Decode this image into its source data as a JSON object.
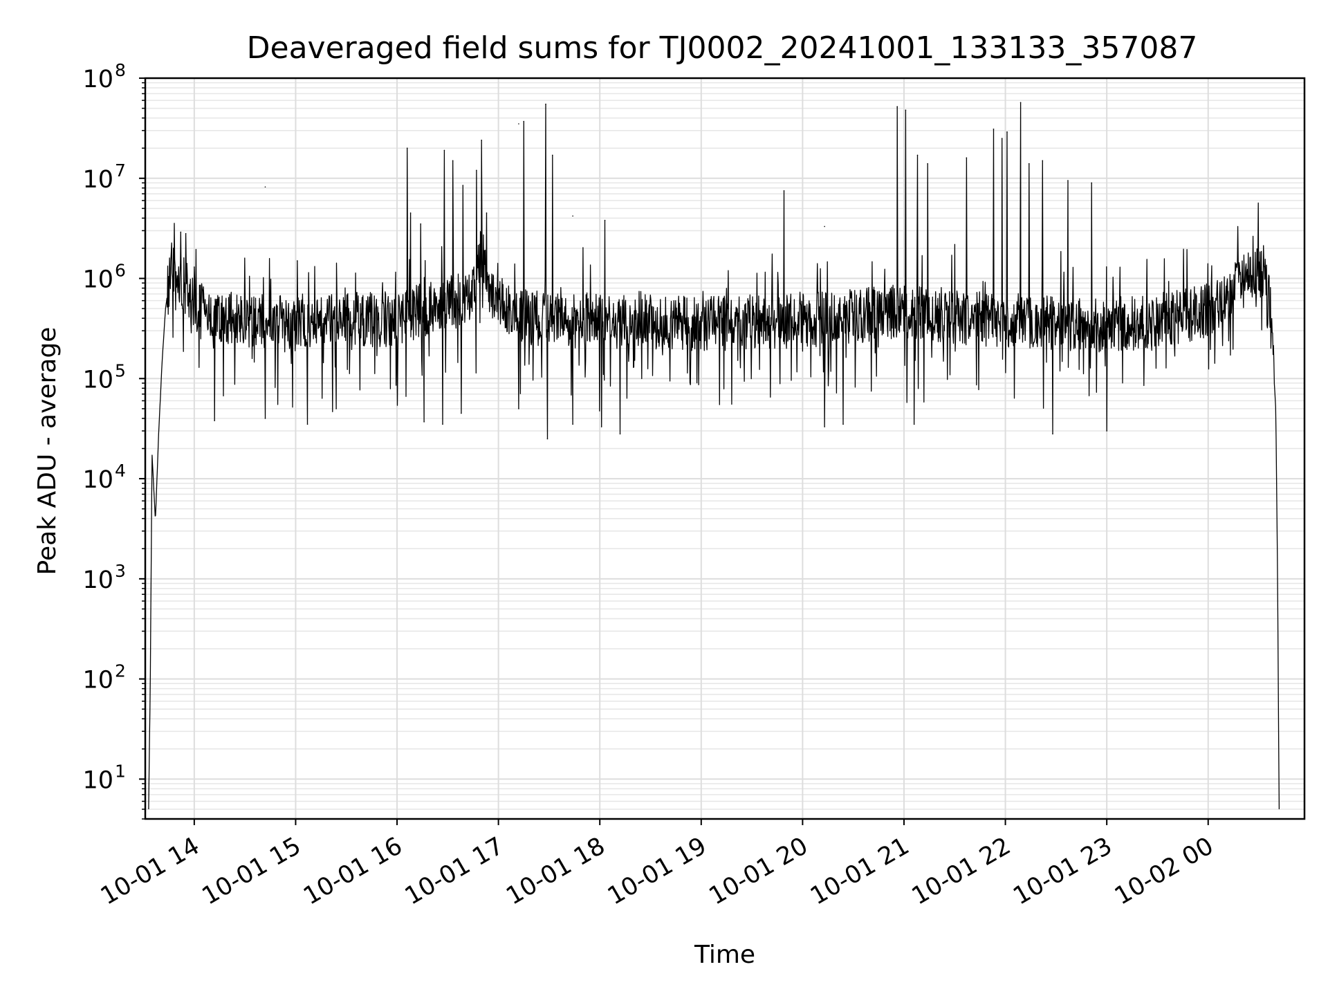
{
  "chart_data": {
    "type": "line",
    "title": "Deaveraged field sums for TJ0002_20241001_133133_357087",
    "xlabel": "Time",
    "ylabel": "Peak ADU - average",
    "x_scale": "time",
    "y_scale": "log",
    "xlim": [
      "2024-10-01 13:31",
      "2024-10-02 00:57"
    ],
    "ylim": [
      4,
      100000000
    ],
    "grid": true,
    "x_ticks": [
      "10-01 14",
      "10-01 15",
      "10-01 16",
      "10-01 17",
      "10-01 18",
      "10-01 19",
      "10-01 20",
      "10-01 21",
      "10-01 22",
      "10-01 23",
      "10-02 00"
    ],
    "y_ticks": [
      {
        "value": 10,
        "base": "10",
        "exp": "1"
      },
      {
        "value": 100,
        "base": "10",
        "exp": "2"
      },
      {
        "value": 1000,
        "base": "10",
        "exp": "3"
      },
      {
        "value": 10000,
        "base": "10",
        "exp": "4"
      },
      {
        "value": 100000,
        "base": "10",
        "exp": "5"
      },
      {
        "value": 1000000,
        "base": "10",
        "exp": "6"
      },
      {
        "value": 10000000,
        "base": "10",
        "exp": "7"
      },
      {
        "value": 100000000,
        "base": "10",
        "exp": "8"
      }
    ],
    "series": [
      {
        "color": "#000000",
        "baseline": {
          "x": [
            "2024-10-01 13:33",
            "2024-10-01 13:34",
            "2024-10-01 13:35",
            "2024-10-01 13:37",
            "2024-10-01 13:39",
            "2024-10-01 13:41",
            "2024-10-01 13:43",
            "2024-10-01 13:45",
            "2024-10-01 13:47",
            "2024-10-01 13:50",
            "2024-10-01 13:55",
            "2024-10-01 14:00",
            "2024-10-01 14:10",
            "2024-10-01 14:30",
            "2024-10-01 15:00",
            "2024-10-01 15:30",
            "2024-10-01 15:50",
            "2024-10-01 16:10",
            "2024-10-01 16:30",
            "2024-10-01 16:45",
            "2024-10-01 16:50",
            "2024-10-01 16:55",
            "2024-10-01 17:00",
            "2024-10-01 17:20",
            "2024-10-01 18:00",
            "2024-10-01 19:00",
            "2024-10-01 20:00",
            "2024-10-01 20:30",
            "2024-10-01 21:00",
            "2024-10-01 21:30",
            "2024-10-01 22:00",
            "2024-10-01 22:30",
            "2024-10-01 23:00",
            "2024-10-01 23:30",
            "2024-10-01 23:45",
            "2024-10-02 00:00",
            "2024-10-02 00:10",
            "2024-10-02 00:15",
            "2024-10-02 00:20",
            "2024-10-02 00:25",
            "2024-10-02 00:30",
            "2024-10-02 00:33",
            "2024-10-02 00:36",
            "2024-10-02 00:40",
            "2024-10-02 00:41",
            "2024-10-02 00:42"
          ],
          "y": [
            5,
            100,
            18000,
            3800,
            30000,
            150000,
            500000,
            900000,
            1300000,
            1200000,
            800000,
            550000,
            400000,
            380000,
            350000,
            400000,
            380000,
            450000,
            550000,
            700000,
            2000000,
            800000,
            550000,
            400000,
            380000,
            350000,
            380000,
            420000,
            480000,
            420000,
            380000,
            360000,
            340000,
            380000,
            420000,
            480000,
            600000,
            750000,
            900000,
            1100000,
            1250000,
            1150000,
            800000,
            50000,
            1500,
            5
          ]
        },
        "spikes": {
          "x": [
            "2024-10-01 13:52",
            "2024-10-01 13:55",
            "2024-10-01 14:00",
            "2024-10-01 14:42",
            "2024-10-01 15:01",
            "2024-10-01 16:06",
            "2024-10-01 16:08",
            "2024-10-01 16:14",
            "2024-10-01 16:28",
            "2024-10-01 16:33",
            "2024-10-01 16:39",
            "2024-10-01 16:47",
            "2024-10-01 16:50",
            "2024-10-01 16:53",
            "2024-10-01 17:12",
            "2024-10-01 17:15",
            "2024-10-01 17:28",
            "2024-10-01 17:32",
            "2024-10-01 17:44",
            "2024-10-01 18:03",
            "2024-10-01 19:49",
            "2024-10-01 20:13",
            "2024-10-01 20:56",
            "2024-10-01 21:01",
            "2024-10-01 21:08",
            "2024-10-01 21:14",
            "2024-10-01 21:37",
            "2024-10-01 21:53",
            "2024-10-01 21:58",
            "2024-10-01 22:01",
            "2024-10-01 22:09",
            "2024-10-01 22:14",
            "2024-10-01 22:22",
            "2024-10-01 22:37",
            "2024-10-01 22:51"
          ],
          "y": [
            2900000,
            2800000,
            1300000,
            8200000,
            1500000,
            20000000,
            4500000,
            3500000,
            19000000,
            15000000,
            8500000,
            12000000,
            24000000,
            4500000,
            35000000,
            37000000,
            55000000,
            17000000,
            4200000,
            3800000,
            7500000,
            3300000,
            52000000,
            48000000,
            17000000,
            14000000,
            16000000,
            31000000,
            25000000,
            29000000,
            57000000,
            14000000,
            15000000,
            9500000,
            9000000
          ]
        },
        "dips": {
          "x": [
            "2024-10-01 14:12",
            "2024-10-01 14:42",
            "2024-10-01 15:07",
            "2024-10-01 15:24",
            "2024-10-01 16:16",
            "2024-10-01 16:27",
            "2024-10-01 16:38",
            "2024-10-01 17:12",
            "2024-10-01 17:29",
            "2024-10-01 17:44",
            "2024-10-01 18:01",
            "2024-10-01 18:12",
            "2024-10-01 20:13",
            "2024-10-01 20:24",
            "2024-10-01 21:06",
            "2024-10-01 22:28",
            "2024-10-01 23:00"
          ],
          "y": [
            38000,
            40000,
            35000,
            50000,
            37000,
            35000,
            45000,
            50000,
            25000,
            35000,
            33000,
            28000,
            33000,
            35000,
            35000,
            28000,
            30000
          ]
        }
      }
    ]
  }
}
